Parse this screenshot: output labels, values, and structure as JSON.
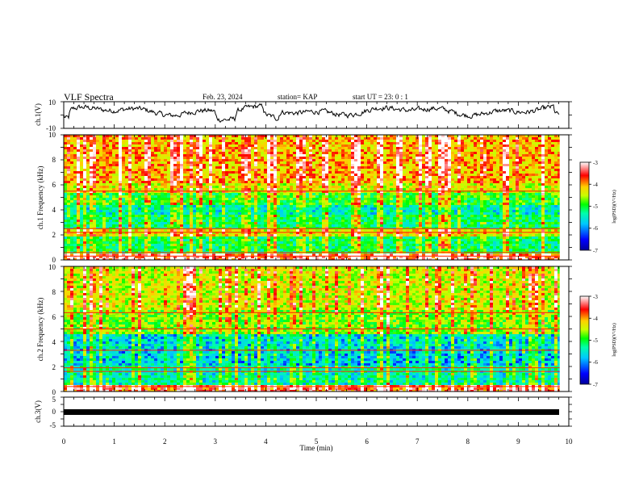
{
  "header": {
    "title": "VLF Spectra",
    "date": "Feb. 23, 2024",
    "station": "station= KAP",
    "start": "start  UT =   23: 0  : 1"
  },
  "chart_data": [
    {
      "type": "line",
      "panel": "ch1-waveform",
      "ylabel": "ch.1(V)",
      "ylim": [
        -10,
        10
      ],
      "yticks": [
        "10",
        "-10"
      ],
      "xlim": [
        0,
        10
      ],
      "data_end_min": 9.82,
      "series": [
        {
          "values_approx": "noisy waveform, mostly between -2 and 8 V, dips near 0 min, 3.2 min, 4.1 min and 9.8 min"
        }
      ]
    },
    {
      "type": "heatmap",
      "panel": "ch1-spectrogram",
      "ylabel": "ch.1 Frequency (kHz)",
      "ylim": [
        0,
        10
      ],
      "yticks": [
        "0",
        "2",
        "4",
        "6",
        "8",
        "10"
      ],
      "xlim": [
        0,
        10
      ],
      "data_end_min": 9.82,
      "colorbar": {
        "label": "log(PSD)(V²/Hz)",
        "range": [
          -7,
          -3
        ],
        "ticks": [
          "-3",
          "-4",
          "-5",
          "-6",
          "-7"
        ]
      },
      "bands_khz": [
        {
          "from": 0,
          "to": 0.6,
          "level": -3.4
        },
        {
          "from": 0.6,
          "to": 1.8,
          "level": -5.3
        },
        {
          "from": 1.8,
          "to": 2.5,
          "level": -4.3
        },
        {
          "from": 2.5,
          "to": 3.6,
          "level": -5.3
        },
        {
          "from": 3.6,
          "to": 4.4,
          "level": -5.6
        },
        {
          "from": 4.4,
          "to": 5.4,
          "level": -5.0
        },
        {
          "from": 5.4,
          "to": 6.2,
          "level": -4.4
        },
        {
          "from": 6.2,
          "to": 10,
          "level": -4.0
        }
      ],
      "lines_khz": [
        0.3,
        0.6,
        2.2,
        2.5,
        5.5
      ]
    },
    {
      "type": "heatmap",
      "panel": "ch2-spectrogram",
      "ylabel": "ch.2 Frequency (kHz)",
      "ylim": [
        0,
        10
      ],
      "yticks": [
        "0",
        "2",
        "4",
        "6",
        "8",
        "10"
      ],
      "xlim": [
        0,
        10
      ],
      "data_end_min": 9.82,
      "colorbar": {
        "label": "log(PSD)(V²/Hz)",
        "range": [
          -7,
          -3
        ],
        "ticks": [
          "-3",
          "-4",
          "-5",
          "-6",
          "-7"
        ]
      },
      "bands_khz": [
        {
          "from": 0,
          "to": 0.5,
          "level": -3.6
        },
        {
          "from": 0.5,
          "to": 2.0,
          "level": -5.6
        },
        {
          "from": 2.0,
          "to": 3.5,
          "level": -5.9
        },
        {
          "from": 3.5,
          "to": 4.5,
          "level": -5.8
        },
        {
          "from": 4.5,
          "to": 6.5,
          "level": -4.8
        },
        {
          "from": 6.5,
          "to": 10,
          "level": -4.4
        }
      ],
      "lines_khz": [
        0.4,
        1.6,
        1.9,
        3.3,
        5.0,
        6.3
      ]
    },
    {
      "type": "line",
      "panel": "ch3-waveform",
      "ylabel": "ch.3(V)",
      "ylim": [
        -5,
        5
      ],
      "yticks": [
        "5",
        "0",
        "-5"
      ],
      "xlim": [
        0,
        10
      ],
      "data_end_min": 9.82,
      "series": [
        {
          "values_approx": "flat thick band near 0 V across the whole record"
        }
      ]
    }
  ],
  "xaxis": {
    "label": "Time (min)",
    "ticks": [
      "0",
      "1",
      "2",
      "3",
      "4",
      "5",
      "6",
      "7",
      "8",
      "9",
      "10"
    ]
  },
  "colors": {
    "frame": "#000000",
    "colormap": [
      "#000099",
      "#0000ff",
      "#00c8ff",
      "#00ffaa",
      "#00ff00",
      "#c8ff00",
      "#ffd000",
      "#ff0000",
      "#ffffff"
    ]
  }
}
